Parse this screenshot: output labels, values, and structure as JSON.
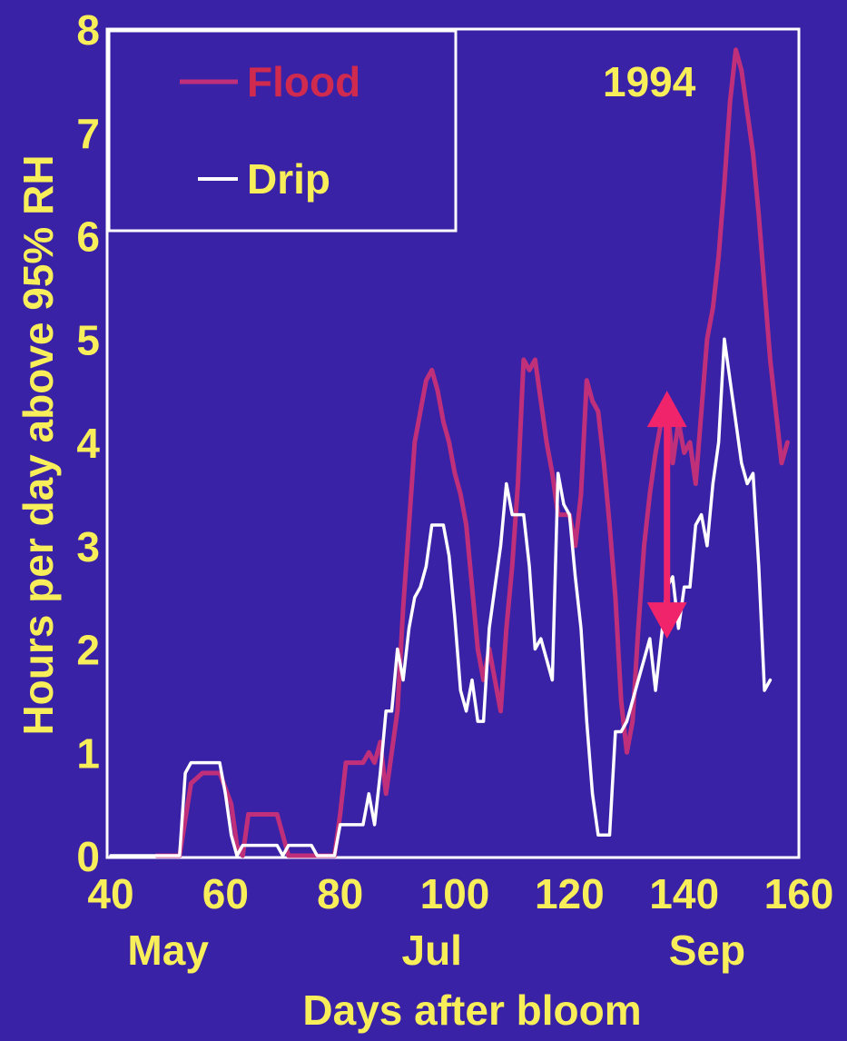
{
  "chart_data": {
    "type": "line",
    "title": "",
    "annotation": "1994",
    "xlabel": "Days after bloom",
    "ylabel": "Hours per day above 95% RH",
    "xlim": [
      40,
      160
    ],
    "ylim": [
      0,
      8
    ],
    "x_ticks": [
      "40",
      "60",
      "80",
      "100",
      "120",
      "140",
      "160"
    ],
    "y_ticks": [
      "0",
      "1",
      "2",
      "3",
      "4",
      "5",
      "6",
      "7",
      "8"
    ],
    "month_labels": [
      {
        "x": 50,
        "label": "May"
      },
      {
        "x": 96,
        "label": "Jul"
      },
      {
        "x": 144,
        "label": "Sep"
      }
    ],
    "grid": false,
    "legend_position": "top-left",
    "series": [
      {
        "name": "Flood",
        "color": "#c0307a",
        "points": [
          [
            48,
            0
          ],
          [
            52,
            0
          ],
          [
            54,
            0.7
          ],
          [
            56,
            0.8
          ],
          [
            59,
            0.8
          ],
          [
            61,
            0.5
          ],
          [
            62,
            0.1
          ],
          [
            63,
            0
          ],
          [
            64,
            0.4
          ],
          [
            69,
            0.4
          ],
          [
            71,
            0
          ],
          [
            79,
            0
          ],
          [
            80,
            0.4
          ],
          [
            81,
            0.9
          ],
          [
            84,
            0.9
          ],
          [
            85,
            1.0
          ],
          [
            86,
            0.9
          ],
          [
            87,
            1.1
          ],
          [
            88,
            0.6
          ],
          [
            90,
            1.4
          ],
          [
            91,
            2.4
          ],
          [
            92,
            3.2
          ],
          [
            93,
            4.0
          ],
          [
            94,
            4.3
          ],
          [
            95,
            4.6
          ],
          [
            96,
            4.7
          ],
          [
            97,
            4.5
          ],
          [
            98,
            4.2
          ],
          [
            99,
            4.0
          ],
          [
            100,
            3.7
          ],
          [
            101,
            3.5
          ],
          [
            102,
            3.2
          ],
          [
            103,
            2.6
          ],
          [
            104,
            2.0
          ],
          [
            105,
            1.7
          ],
          [
            106,
            2.0
          ],
          [
            107,
            1.7
          ],
          [
            108,
            1.4
          ],
          [
            109,
            2.2
          ],
          [
            110,
            2.8
          ],
          [
            111,
            3.6
          ],
          [
            112,
            4.8
          ],
          [
            113,
            4.7
          ],
          [
            114,
            4.8
          ],
          [
            115,
            4.4
          ],
          [
            116,
            4.0
          ],
          [
            117,
            3.7
          ],
          [
            118,
            3.3
          ],
          [
            119,
            3.3
          ],
          [
            120,
            3.3
          ],
          [
            121,
            3.0
          ],
          [
            122,
            3.5
          ],
          [
            123,
            4.6
          ],
          [
            124,
            4.4
          ],
          [
            125,
            4.3
          ],
          [
            126,
            3.8
          ],
          [
            127,
            3.2
          ],
          [
            128,
            2.5
          ],
          [
            129,
            1.5
          ],
          [
            130,
            1.0
          ],
          [
            131,
            1.3
          ],
          [
            132,
            2.2
          ],
          [
            133,
            3.0
          ],
          [
            134,
            3.5
          ],
          [
            135,
            3.9
          ],
          [
            136,
            4.2
          ],
          [
            137,
            4.4
          ],
          [
            138,
            3.8
          ],
          [
            139,
            4.2
          ],
          [
            140,
            3.9
          ],
          [
            141,
            4.0
          ],
          [
            142,
            3.6
          ],
          [
            143,
            4.3
          ],
          [
            144,
            5.0
          ],
          [
            145,
            5.3
          ],
          [
            146,
            5.8
          ],
          [
            147,
            6.5
          ],
          [
            148,
            7.3
          ],
          [
            149,
            7.8
          ],
          [
            150,
            7.6
          ],
          [
            151,
            7.2
          ],
          [
            152,
            6.8
          ],
          [
            153,
            6.2
          ],
          [
            154,
            5.5
          ],
          [
            155,
            4.8
          ],
          [
            156,
            4.3
          ],
          [
            157,
            3.8
          ],
          [
            158,
            4.0
          ]
        ]
      },
      {
        "name": "Drip",
        "color": "#ffffff",
        "points": [
          [
            40,
            0
          ],
          [
            52,
            0
          ],
          [
            53,
            0.8
          ],
          [
            54,
            0.9
          ],
          [
            59,
            0.9
          ],
          [
            60,
            0.6
          ],
          [
            61,
            0.2
          ],
          [
            62,
            0
          ],
          [
            63,
            0.1
          ],
          [
            69,
            0.1
          ],
          [
            70,
            0
          ],
          [
            71,
            0.1
          ],
          [
            75,
            0.1
          ],
          [
            76,
            0
          ],
          [
            79,
            0
          ],
          [
            80,
            0.3
          ],
          [
            83,
            0.3
          ],
          [
            84,
            0.3
          ],
          [
            85,
            0.6
          ],
          [
            86,
            0.3
          ],
          [
            87,
            0.8
          ],
          [
            88,
            1.4
          ],
          [
            89,
            1.4
          ],
          [
            90,
            2.0
          ],
          [
            91,
            1.7
          ],
          [
            92,
            2.2
          ],
          [
            93,
            2.5
          ],
          [
            94,
            2.6
          ],
          [
            95,
            2.8
          ],
          [
            96,
            3.2
          ],
          [
            98,
            3.2
          ],
          [
            99,
            2.9
          ],
          [
            100,
            2.3
          ],
          [
            101,
            1.6
          ],
          [
            102,
            1.4
          ],
          [
            103,
            1.7
          ],
          [
            104,
            1.3
          ],
          [
            105,
            1.3
          ],
          [
            106,
            2.2
          ],
          [
            107,
            2.6
          ],
          [
            108,
            3.0
          ],
          [
            109,
            3.6
          ],
          [
            110,
            3.3
          ],
          [
            111,
            3.3
          ],
          [
            112,
            3.3
          ],
          [
            113,
            2.8
          ],
          [
            114,
            2.0
          ],
          [
            115,
            2.1
          ],
          [
            116,
            1.9
          ],
          [
            117,
            1.7
          ],
          [
            118,
            3.7
          ],
          [
            119,
            3.4
          ],
          [
            120,
            3.3
          ],
          [
            121,
            2.7
          ],
          [
            122,
            2.2
          ],
          [
            123,
            1.3
          ],
          [
            124,
            0.6
          ],
          [
            125,
            0.2
          ],
          [
            127,
            0.2
          ],
          [
            128,
            1.2
          ],
          [
            129,
            1.2
          ],
          [
            130,
            1.3
          ],
          [
            131,
            1.5
          ],
          [
            132,
            1.7
          ],
          [
            133,
            1.9
          ],
          [
            134,
            2.1
          ],
          [
            135,
            1.6
          ],
          [
            136,
            2.1
          ],
          [
            137,
            2.6
          ],
          [
            138,
            2.7
          ],
          [
            139,
            2.2
          ],
          [
            140,
            2.6
          ],
          [
            141,
            2.6
          ],
          [
            142,
            3.2
          ],
          [
            143,
            3.3
          ],
          [
            144,
            3.0
          ],
          [
            145,
            3.6
          ],
          [
            146,
            4.0
          ],
          [
            147,
            5.0
          ],
          [
            148,
            4.6
          ],
          [
            149,
            4.2
          ],
          [
            150,
            3.8
          ],
          [
            151,
            3.6
          ],
          [
            152,
            3.7
          ],
          [
            153,
            2.8
          ],
          [
            154,
            1.6
          ],
          [
            155,
            1.7
          ]
        ]
      }
    ],
    "arrow": {
      "x": 137,
      "y_top": 4.5,
      "y_bottom": 2.1,
      "color": "#f0246a"
    }
  }
}
